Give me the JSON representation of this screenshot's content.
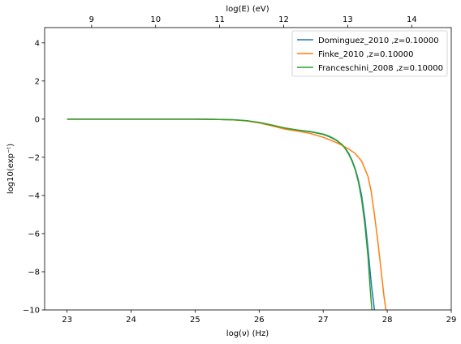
{
  "chart_data": {
    "type": "line",
    "xlabel": "log(ν)  (Hz)",
    "ylabel": "log10(exp⁻ᵗ)",
    "top_xlabel": "log(E) (eV)",
    "xlim": [
      22.65,
      29.0
    ],
    "ylim": [
      -10.0,
      4.8
    ],
    "xticks": [
      "23",
      "24",
      "25",
      "26",
      "27",
      "28",
      "29"
    ],
    "yticks": [
      "4",
      "2",
      "0",
      "−2",
      "−4",
      "−6",
      "−8",
      "−10"
    ],
    "top_ticks": [
      "9",
      "10",
      "11",
      "12",
      "13",
      "14"
    ],
    "grid": false,
    "legend_position": "top-right",
    "series": [
      {
        "name": "Dominguez_2010 ,z=0.10000",
        "color": "#1f77b4",
        "x": [
          23.0,
          24.0,
          25.0,
          25.3,
          25.6,
          25.8,
          26.0,
          26.2,
          26.4,
          26.6,
          26.8,
          27.0,
          27.1,
          27.2,
          27.3,
          27.35,
          27.4,
          27.45,
          27.5,
          27.55,
          27.6,
          27.65,
          27.7,
          27.75,
          27.8
        ],
        "y": [
          0.0,
          0.0,
          0.0,
          -0.01,
          -0.03,
          -0.08,
          -0.18,
          -0.32,
          -0.47,
          -0.58,
          -0.66,
          -0.8,
          -0.93,
          -1.1,
          -1.35,
          -1.55,
          -1.8,
          -2.15,
          -2.6,
          -3.2,
          -4.0,
          -5.2,
          -6.8,
          -8.6,
          -10.0
        ]
      },
      {
        "name": "Finke_2010 ,z=0.10000",
        "color": "#ff7f0e",
        "x": [
          23.0,
          24.0,
          25.0,
          25.3,
          25.6,
          25.8,
          26.0,
          26.2,
          26.4,
          26.6,
          26.8,
          27.0,
          27.1,
          27.2,
          27.3,
          27.4,
          27.5,
          27.6,
          27.7,
          27.75,
          27.8,
          27.85,
          27.9,
          27.95,
          27.98
        ],
        "y": [
          0.0,
          0.0,
          0.0,
          -0.01,
          -0.04,
          -0.09,
          -0.2,
          -0.35,
          -0.52,
          -0.63,
          -0.75,
          -0.95,
          -1.08,
          -1.22,
          -1.38,
          -1.57,
          -1.8,
          -2.2,
          -3.0,
          -3.8,
          -5.0,
          -6.3,
          -7.8,
          -9.3,
          -10.0
        ]
      },
      {
        "name": "Franceschini_2008 ,z=0.10000",
        "color": "#2ca02c",
        "x": [
          23.0,
          24.0,
          25.0,
          25.3,
          25.6,
          25.8,
          26.0,
          26.2,
          26.4,
          26.6,
          26.8,
          27.0,
          27.1,
          27.2,
          27.3,
          27.35,
          27.4,
          27.45,
          27.5,
          27.55,
          27.6,
          27.65,
          27.7,
          27.73,
          27.76
        ],
        "y": [
          0.0,
          0.0,
          0.0,
          -0.01,
          -0.03,
          -0.08,
          -0.17,
          -0.31,
          -0.46,
          -0.57,
          -0.65,
          -0.78,
          -0.9,
          -1.08,
          -1.35,
          -1.58,
          -1.85,
          -2.2,
          -2.65,
          -3.3,
          -4.2,
          -5.5,
          -7.2,
          -8.7,
          -10.0
        ]
      }
    ]
  }
}
